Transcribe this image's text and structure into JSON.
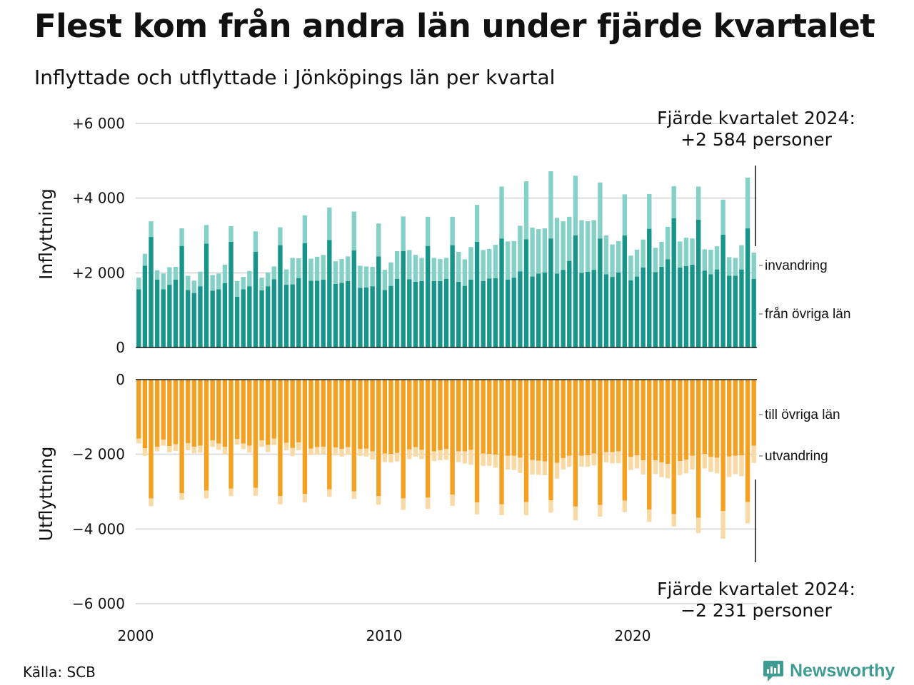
{
  "title": "Flest kom från andra län under fjärde kvartalet",
  "subtitle": "Inflyttade och utflyttade i Jönköpings län per kvartal",
  "source": "Källa: SCB",
  "brand": {
    "name": "Newsworthy",
    "icon": "newsworthy-logo-icon",
    "color": "#3f9c92"
  },
  "colors": {
    "inflow_regions": "#17958a",
    "inflow_immigration": "#86d1c7",
    "outflow_regions": "#f4a021",
    "outflow_emigration": "#f9d9a4",
    "grid": "#dddddd",
    "axis": "#111111"
  },
  "annotations": {
    "top": [
      "Fjärde kvartalet 2024:",
      "+2 584 personer"
    ],
    "bottom": [
      "Fjärde kvartalet 2024:",
      "−2 231 personer"
    ]
  },
  "chart_data": {
    "type": "bar",
    "stacked": true,
    "diverging": true,
    "x_axis": {
      "ticks": [
        "2000",
        "2010",
        "2020"
      ],
      "tick_values": [
        2000,
        2010,
        2020
      ],
      "range": [
        2000,
        2025
      ]
    },
    "y_axis": {
      "range": [
        -6000,
        6000
      ],
      "ticks": [
        6000,
        4000,
        2000,
        0,
        -2000,
        -4000,
        -6000
      ],
      "tick_labels": [
        "+6 000",
        "+4 000",
        "+2 000",
        "0",
        "0",
        "−2 000",
        "−4 000",
        "−6 000"
      ]
    },
    "panels": [
      {
        "name": "Inflyttning",
        "ylabel": "Inflyttning",
        "range": [
          0,
          6000
        ],
        "series": [
          {
            "name": "från övriga län",
            "values": [
              1560,
              2190,
              2960,
              1820,
              1560,
              1680,
              1820,
              2720,
              1540,
              1460,
              1640,
              2780,
              1520,
              1560,
              1720,
              2830,
              1360,
              1560,
              1640,
              2560,
              1530,
              1640,
              1830,
              2740,
              1680,
              1690,
              1860,
              2790,
              1790,
              1790,
              1820,
              2880,
              1700,
              1730,
              1780,
              2600,
              1600,
              1610,
              1640,
              2440,
              1540,
              1650,
              1840,
              2580,
              1830,
              1760,
              1780,
              2720,
              1780,
              1780,
              1840,
              2740,
              1760,
              1650,
              1820,
              2830,
              1780,
              1850,
              1860,
              2920,
              1820,
              1870,
              2040,
              2900,
              1900,
              1980,
              2010,
              2920,
              1980,
              2080,
              2320,
              3000,
              2000,
              2030,
              2080,
              2920,
              1960,
              1890,
              2010,
              3000,
              1800,
              1900,
              2140,
              3180,
              2020,
              2160,
              2360,
              3460,
              2140,
              2180,
              2220,
              3420,
              2060,
              1960,
              2090,
              3020,
              1920,
              1920,
              2090,
              3190,
              1840
            ],
            "color": "#17958a"
          },
          {
            "name": "invandring",
            "values": [
              310,
              320,
              420,
              250,
              420,
              470,
              340,
              470,
              380,
              330,
              390,
              500,
              420,
              420,
              500,
              420,
              420,
              330,
              410,
              550,
              340,
              370,
              340,
              480,
              410,
              710,
              530,
              750,
              590,
              640,
              660,
              870,
              610,
              640,
              660,
              1040,
              590,
              560,
              520,
              880,
              540,
              630,
              740,
              930,
              780,
              720,
              620,
              780,
              620,
              590,
              560,
              760,
              800,
              710,
              870,
              990,
              830,
              790,
              890,
              1390,
              1020,
              980,
              1220,
              1550,
              1310,
              1190,
              1180,
              1800,
              1490,
              1300,
              1180,
              1600,
              1410,
              1350,
              1330,
              1500,
              1040,
              870,
              840,
              1100,
              660,
              720,
              750,
              930,
              650,
              670,
              870,
              860,
              700,
              760,
              700,
              890,
              570,
              660,
              620,
              940,
              500,
              480,
              650,
              1360,
              700
            ],
            "color": "#86d1c7"
          }
        ]
      },
      {
        "name": "Utflyttning",
        "ylabel": "Utflyttning",
        "range": [
          -6000,
          0
        ],
        "series": [
          {
            "name": "till övriga län",
            "values": [
              -1580,
              -1840,
              -3180,
              -1800,
              -1610,
              -1780,
              -1730,
              -3040,
              -1700,
              -1800,
              -1770,
              -2970,
              -1630,
              -1710,
              -1800,
              -2920,
              -1590,
              -1710,
              -1770,
              -2900,
              -1630,
              -1750,
              -1580,
              -3120,
              -1690,
              -1830,
              -1680,
              -3060,
              -1850,
              -1810,
              -1800,
              -2940,
              -1820,
              -1860,
              -1810,
              -2990,
              -1860,
              -1850,
              -1920,
              -3120,
              -1980,
              -1990,
              -1960,
              -3180,
              -1870,
              -1810,
              -1880,
              -3160,
              -1920,
              -1890,
              -1860,
              -3080,
              -1920,
              -1920,
              -1880,
              -3290,
              -1980,
              -1990,
              -2010,
              -3340,
              -2040,
              -2040,
              -2090,
              -3280,
              -2150,
              -2170,
              -2190,
              -3230,
              -2230,
              -2100,
              -2040,
              -3400,
              -2040,
              -2030,
              -1980,
              -3360,
              -1940,
              -1940,
              -1920,
              -3240,
              -2070,
              -2030,
              -2160,
              -3480,
              -2160,
              -2220,
              -2260,
              -3600,
              -2180,
              -2140,
              -2040,
              -3700,
              -1990,
              -2070,
              -2090,
              -3520,
              -2060,
              -2040,
              -2030,
              -3280,
              -1770
            ],
            "color": "#f4a021"
          },
          {
            "name": "utvandring",
            "values": [
              -130,
              -200,
              -210,
              -120,
              -160,
              -170,
              -180,
              -180,
              -190,
              -170,
              -190,
              -210,
              -170,
              -170,
              -200,
              -200,
              -150,
              -150,
              -190,
              -210,
              -170,
              -190,
              -170,
              -220,
              -200,
              -220,
              -210,
              -230,
              -170,
              -200,
              -190,
              -200,
              -210,
              -200,
              -200,
              -200,
              -180,
              -210,
              -220,
              -230,
              -230,
              -230,
              -230,
              -310,
              -260,
              -250,
              -250,
              -300,
              -260,
              -270,
              -290,
              -300,
              -290,
              -330,
              -400,
              -320,
              -330,
              -320,
              -350,
              -290,
              -370,
              -380,
              -410,
              -350,
              -390,
              -380,
              -370,
              -330,
              -420,
              -310,
              -290,
              -370,
              -290,
              -300,
              -320,
              -310,
              -280,
              -300,
              -320,
              -310,
              -350,
              -350,
              -380,
              -330,
              -370,
              -390,
              -380,
              -330,
              -380,
              -370,
              -370,
              -410,
              -390,
              -400,
              -420,
              -740,
              -550,
              -490,
              -560,
              -570,
              -460
            ],
            "color": "#f9d9a4"
          }
        ]
      }
    ]
  }
}
